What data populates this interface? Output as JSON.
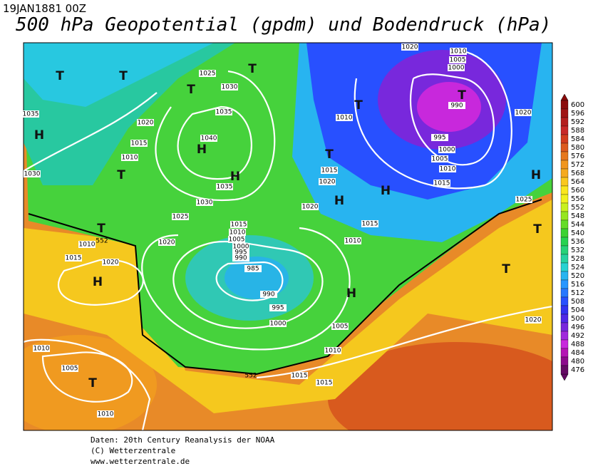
{
  "header": {
    "date": "19JAN1881 00Z",
    "title": "500 hPa Geopotential (gpdm) und Bodendruck (hPa)"
  },
  "colorbar": {
    "ticks": [
      600,
      596,
      592,
      588,
      584,
      580,
      576,
      572,
      568,
      564,
      560,
      556,
      552,
      548,
      544,
      540,
      536,
      532,
      528,
      524,
      520,
      516,
      512,
      508,
      504,
      500,
      496,
      492,
      488,
      484,
      480,
      476
    ],
    "colors": [
      "#8b0a0a",
      "#a01414",
      "#b41e1e",
      "#c82828",
      "#d23c1e",
      "#dc5a1e",
      "#e6781e",
      "#f0961e",
      "#f5aa1e",
      "#fac81e",
      "#fae61e",
      "#f0f01e",
      "#c8f01e",
      "#96e61e",
      "#64dc28",
      "#3cd232",
      "#28d250",
      "#28d278",
      "#28d2a0",
      "#28d2d2",
      "#28b4f0",
      "#2896ff",
      "#2878ff",
      "#2850ff",
      "#3232f0",
      "#5028e6",
      "#7828dc",
      "#a028dc",
      "#c828dc",
      "#b414b4",
      "#8c0a8c",
      "#640a64"
    ]
  },
  "isobar_labels": [
    1020,
    1010,
    1005,
    1000,
    990,
    995,
    1000,
    1005,
    1010,
    1015,
    1020,
    1025,
    1010,
    1015,
    1020,
    1020,
    1015,
    1010,
    1025,
    1030,
    1035,
    1040,
    1035,
    1030,
    1025,
    1020,
    1020,
    1015,
    1010,
    1035,
    1030,
    1010,
    1015,
    1020,
    1015,
    1010,
    1005,
    1000,
    995,
    990,
    985,
    990,
    995,
    1000,
    1005,
    1010,
    1015,
    1015,
    1020,
    1010,
    1005,
    1010
  ],
  "contour_labels": [
    552,
    552
  ],
  "pressure_centers": [
    "T",
    "T",
    "T",
    "T",
    "T",
    "T",
    "T",
    "T",
    "T",
    "T",
    "T",
    "T",
    "H",
    "H",
    "H",
    "H",
    "H",
    "H",
    "H",
    "H"
  ],
  "footer": [
    "Daten: 20th Century Reanalysis der NOAA",
    "(C) Wetterzentrale",
    "www.wetterzentrale.de"
  ]
}
